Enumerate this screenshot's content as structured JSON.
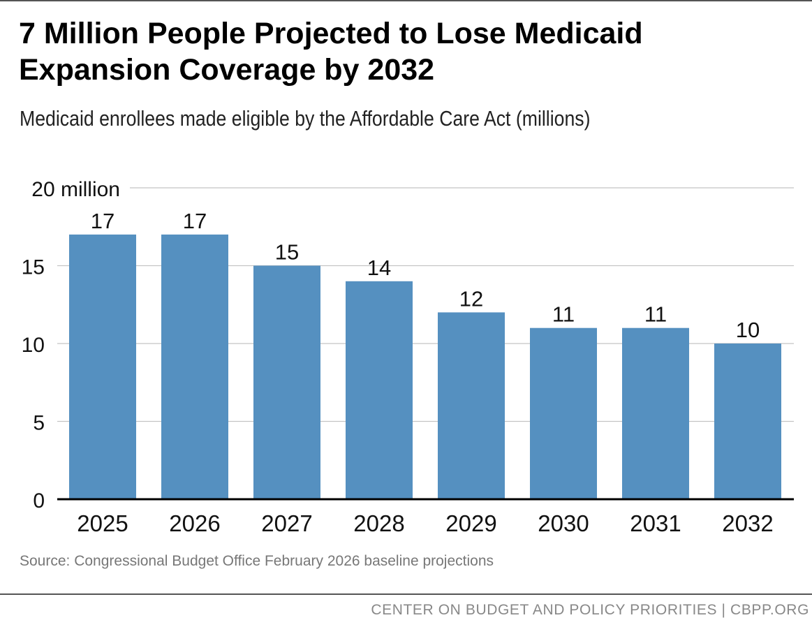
{
  "header": {
    "title": "7 Million People Projected to Lose Medicaid Expansion Coverage by 2032",
    "subtitle": "Medicaid enrollees made eligible by the Affordable Care Act (millions)"
  },
  "chart_data": {
    "type": "bar",
    "title": "7 Million People Projected to Lose Medicaid Expansion Coverage by 2032",
    "subtitle": "Medicaid enrollees made eligible by the Affordable Care Act (millions)",
    "categories": [
      "2025",
      "2026",
      "2027",
      "2028",
      "2029",
      "2030",
      "2031",
      "2032"
    ],
    "values": [
      17,
      17,
      15,
      14,
      12,
      11,
      11,
      10
    ],
    "data_labels": [
      "17",
      "17",
      "15",
      "14",
      "12",
      "11",
      "11",
      "10"
    ],
    "ylim": [
      0,
      20
    ],
    "yticks": [
      0,
      5,
      10,
      15,
      20
    ],
    "ytick_labels": [
      "0",
      "5",
      "10",
      "15",
      "20 million"
    ],
    "grid": true,
    "legend": "none",
    "bar_color": "#5590c0"
  },
  "source": "Source: Congressional Budget Office February 2026 baseline projections",
  "footer": "CENTER ON BUDGET AND POLICY PRIORITIES | CBPP.ORG"
}
